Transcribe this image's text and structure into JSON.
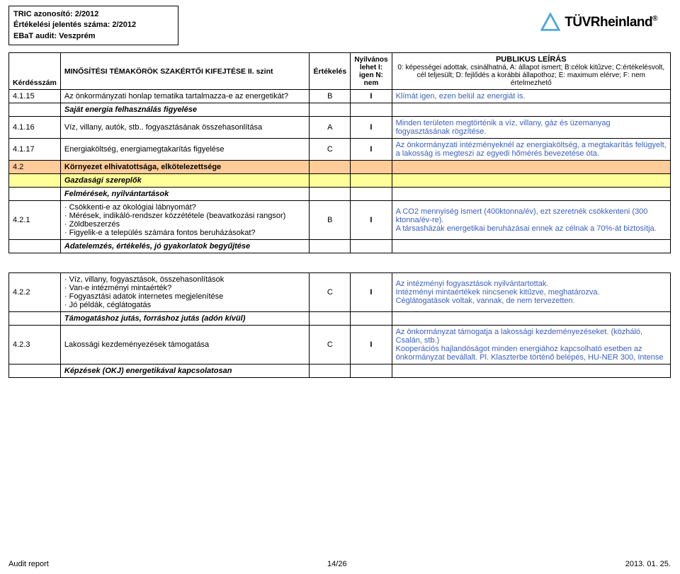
{
  "header": {
    "line1": "TRIC azonosító: 2/2012",
    "line2": "Értékelési jelentés száma: 2/2012",
    "line3": "EBaT audit: Veszprém"
  },
  "logo": {
    "text": "TÜVRheinland",
    "reg": "®"
  },
  "columns": {
    "num": "Kérdésszám",
    "topic": "MINŐSÍTÉSI TÉMAKÖRÖK SZAKÉRTŐI KIFEJTÉSE II. szint",
    "eval": "Értékelés",
    "nyilv": "Nyilvános lehet I: igen N: nem",
    "desc_title": "PUBLIKUS LEÍRÁS",
    "desc_body": "0: képességei adottak, csinálhatná, A: állapot ismert; B:célok kitűzve; C:értékelésvolt, cél teljesült; D: fejlődés a korábbi állapothoz; E: maximum elérve; F: nem értelmezhető"
  },
  "rows": [
    {
      "num": "4.1.15",
      "topic": "Az önkormányzati honlap tematika tartalmazza-e az energetikát?",
      "eval": "B",
      "nyilv": "I",
      "desc": "Klímát igen, ezen belül az energiát is."
    },
    {
      "italic": true,
      "topic": "Saját energia felhasználás figyelése"
    },
    {
      "num": "4.1.16",
      "topic": "Víz, villany, autók, stb.. fogyasztásának összehasonlítása",
      "eval": "A",
      "nyilv": "I",
      "desc": "Minden területen megtörténik a víz, villany, gáz és üzemanyag fogyasztásának rögzítése."
    },
    {
      "num": "4.1.17",
      "topic": "Energiaköltség, energiamegtakarítás figyelése",
      "eval": "C",
      "nyilv": "I",
      "desc": "Az önkormányzati intézményeknél az energiaköltség, a megtakarítás felügyelt, a lakosság is megteszi az egyedi hőmérés bevezetése óta."
    },
    {
      "orange": true,
      "num": "4.2",
      "topic": "Környezet elhivatottsága, elkötelezettsége"
    },
    {
      "yellow": true,
      "italic": true,
      "topic": "Gazdasági szereplők"
    },
    {
      "italic": true,
      "topic": "Felmérések, nyilvántartások"
    },
    {
      "num": "4.2.1",
      "topic": "·         Csökkenti-e az ökológiai lábnyomát?\n·         Mérések, indikáló-rendszer közzététele (beavatkozási rangsor)\n·         Zöldbeszerzés\n·         Figyelik-e a település számára fontos beruházásokat?",
      "eval": "B",
      "nyilv": "I",
      "desc": "A CO2 mennyiség ismert (400ktonna/év), ezt szeretnék csökkenteni (300 ktonna/év-re).\nA társasházak energetikai beruházásai ennek az célnak a 70%-át biztosítja."
    },
    {
      "italic": true,
      "topic": "Adatelemzés, értékelés, jó gyakorlatok begyűjtése"
    },
    {
      "spacer": true
    },
    {
      "num": "4.2.2",
      "topic": "·         Víz, villany, fogyasztások, összehasonlítások\n·         Van-e intézményi mintaérték?\n·         Fogyasztási adatok internetes megjelenítése\n·         Jó példák, céglátogatás",
      "eval": "C",
      "nyilv": "I",
      "desc": "Az intézményi fogyasztások nyilvántartottak.\nIntézményi mintaértékek nincsenek kitűzve, meghatározva.\nCéglátogatások voltak, vannak, de nem tervezetten."
    },
    {
      "italic": true,
      "topic": "Támogatáshoz jutás, forráshoz jutás (adón kívül)"
    },
    {
      "num": "4.2.3",
      "topic": "Lakossági kezdeményezések támogatása",
      "eval": "C",
      "nyilv": "I",
      "desc": "Az önkormányzat támogatja a lakossági kezdeményezéseket. (közháló, Csalán, stb.)\nKooperációs hajlandóságot minden energiához kapcsolható esetben az önkormányzat bevállalt. Pl. Klaszterbe történő belépés, HU-NER 300, Intense"
    },
    {
      "italic": true,
      "topic": "Képzések (OKJ) energetikával kapcsolatosan"
    }
  ],
  "footer": {
    "left": "Audit report",
    "center": "14/26",
    "right": "2013. 01. 25."
  }
}
